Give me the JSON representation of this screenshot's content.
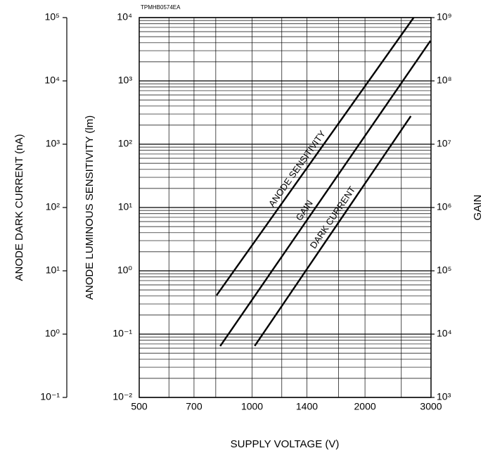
{
  "chart_data": {
    "type": "line",
    "code": "TPMHB0574EA",
    "x_label": "SUPPLY VOLTAGE (V)",
    "y_label": "ANODE LUMINOUS SENSITIVITY (lm)",
    "y2_label": "GAIN",
    "y3_label": "ANODE DARK CURRENT (nA)",
    "x_log": true,
    "y_log": true,
    "grid": true,
    "minor_grid": true,
    "xlim": [
      500,
      3000
    ],
    "xticks": [
      500,
      700,
      1000,
      1400,
      2000,
      3000
    ],
    "x_minor_grid": [
      600,
      800,
      1200,
      1700,
      2500
    ],
    "ylim": [
      0.01,
      10000
    ],
    "yticks": [
      {
        "value": 0.01,
        "label": "10⁻²"
      },
      {
        "value": 0.1,
        "label": "10⁻¹"
      },
      {
        "value": 1,
        "label": "10⁰"
      },
      {
        "value": 10,
        "label": "10¹"
      },
      {
        "value": 100,
        "label": "10²"
      },
      {
        "value": 1000,
        "label": "10³"
      },
      {
        "value": 10000,
        "label": "10⁴"
      }
    ],
    "y2lim": [
      1000,
      1000000000
    ],
    "y2ticks": [
      {
        "value": 1000,
        "label": "10³"
      },
      {
        "value": 10000,
        "label": "10⁴"
      },
      {
        "value": 100000,
        "label": "10⁵"
      },
      {
        "value": 1000000,
        "label": "10⁶"
      },
      {
        "value": 10000000,
        "label": "10⁷"
      },
      {
        "value": 100000000,
        "label": "10⁸"
      },
      {
        "value": 1000000000,
        "label": "10⁹"
      }
    ],
    "y3lim": [
      0.1,
      100000
    ],
    "y3ticks": [
      {
        "value": 0.1,
        "label": "10⁻¹"
      },
      {
        "value": 1,
        "label": "10⁰"
      },
      {
        "value": 10,
        "label": "10¹"
      },
      {
        "value": 100,
        "label": "10²"
      },
      {
        "value": 1000,
        "label": "10³"
      },
      {
        "value": 10000,
        "label": "10⁴"
      },
      {
        "value": 100000,
        "label": "10⁵"
      }
    ],
    "series": [
      {
        "name": "ANODE SENSITIVITY",
        "color": "#000000",
        "axis": "y",
        "x": [
          804,
          2697
        ],
        "values": [
          0.41,
          10000
        ]
      },
      {
        "name": "GAIN",
        "color": "#000000",
        "axis": "y2",
        "x": [
          822,
          2990
        ],
        "values": [
          6470,
          430000000
        ]
      },
      {
        "name": "DARK CURRENT",
        "color": "#000000",
        "axis": "y3",
        "x": [
          1016,
          2650
        ],
        "values": [
          0.65,
          2780
        ]
      }
    ]
  }
}
